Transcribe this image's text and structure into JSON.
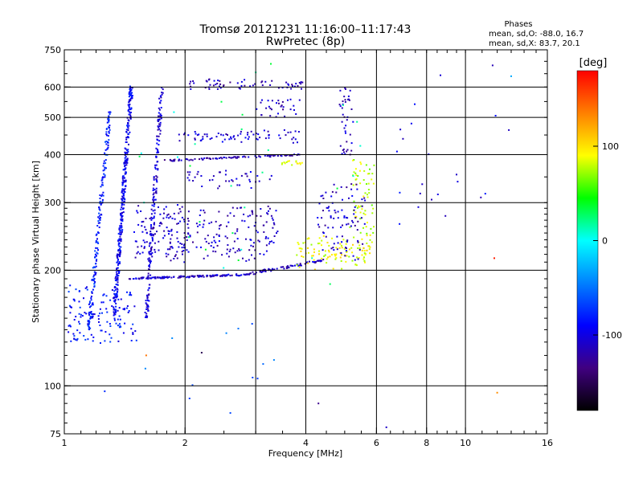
{
  "chart_data": {
    "type": "scatter",
    "title": "Tromsø 20121231 11:16:00–11:17:43",
    "subtitle": "RwPretec (8p)",
    "xlabel": "Frequency [MHz]",
    "ylabel": "Stationary phase Virtual Height [km]",
    "xscale": "log",
    "yscale": "log",
    "xlim": [
      1,
      16
    ],
    "ylim": [
      75,
      750
    ],
    "x_ticks": [
      1,
      2,
      4,
      6,
      8,
      10,
      16
    ],
    "x_gridlines": [
      2,
      3,
      4,
      6,
      8,
      10
    ],
    "y_ticks": [
      75,
      100,
      200,
      300,
      400,
      500,
      600,
      750
    ],
    "y_gridlines": [
      100,
      200,
      300,
      400,
      500,
      600
    ],
    "grid": true,
    "phase_box": {
      "heading": "Phases",
      "line_o": "mean, sd,O: -88.0, 16.7",
      "line_x": "mean, sd,X: 83.7, 20.1"
    },
    "colorbar": {
      "label": "[deg]",
      "range": [
        -180,
        180
      ],
      "ticks": [
        100,
        0,
        -100
      ],
      "colors": [
        "#ff0000",
        "#ff8000",
        "#ffff00",
        "#00ff00",
        "#00ffff",
        "#0080ff",
        "#0000ff",
        "#400080",
        "#000000"
      ]
    },
    "clusters": [
      {
        "desc": "F-layer trace O",
        "xs": [
          1.45,
          2.9
        ],
        "hs": [
          190,
          195
        ],
        "phase": -110,
        "n": 140,
        "jitter": 0.01
      },
      {
        "desc": "rising trace",
        "xs": [
          2.9,
          4.4
        ],
        "hs": [
          196,
          212
        ],
        "phase": -110,
        "n": 70,
        "jitter": 0.015
      },
      {
        "desc": "X trace near cusp",
        "xs": [
          3.8,
          5.8
        ],
        "hs": [
          205,
          240
        ],
        "phase": 90,
        "n": 110,
        "jitter": 0.05
      },
      {
        "desc": "cusp rise",
        "xs": [
          5.2,
          5.9
        ],
        "hs": [
          240,
          390
        ],
        "phase": 80,
        "n": 70,
        "jitter": 0.05
      },
      {
        "desc": "cusp O",
        "xs": [
          4.3,
          5.6
        ],
        "hs": [
          220,
          330
        ],
        "phase": -110,
        "n": 90,
        "jitter": 0.08
      },
      {
        "desc": "column 1.4",
        "xs": [
          1.33,
          1.47
        ],
        "hs": [
          150,
          600
        ],
        "phase": -95,
        "n": 330,
        "jitter": 0.01
      },
      {
        "desc": "column 1.25",
        "xs": [
          1.15,
          1.3
        ],
        "hs": [
          140,
          520
        ],
        "phase": -80,
        "n": 170,
        "jitter": 0.01
      },
      {
        "desc": "column 1.7",
        "xs": [
          1.6,
          1.75
        ],
        "hs": [
          150,
          600
        ],
        "phase": -105,
        "n": 190,
        "jitter": 0.01
      },
      {
        "desc": "low cluster",
        "xs": [
          1.02,
          1.5
        ],
        "hs": [
          130,
          180
        ],
        "phase": -85,
        "n": 130,
        "jitter": 0.04
      },
      {
        "desc": "band 260",
        "xs": [
          1.5,
          3.4
        ],
        "hs": [
          215,
          290
        ],
        "phase": -110,
        "n": 260,
        "jitter": 0.06
      },
      {
        "desc": "band 390",
        "xs": [
          1.7,
          3.9
        ],
        "hs": [
          385,
          400
        ],
        "phase": -115,
        "n": 90,
        "jitter": 0.01
      },
      {
        "desc": "band 440",
        "xs": [
          1.9,
          3.9
        ],
        "hs": [
          430,
          460
        ],
        "phase": -105,
        "n": 70,
        "jitter": 0.02
      },
      {
        "desc": "band 600",
        "xs": [
          2.0,
          3.9
        ],
        "hs": [
          595,
          625
        ],
        "phase": -115,
        "n": 60,
        "jitter": 0.02
      },
      {
        "desc": "upper 520",
        "xs": [
          3.0,
          3.9
        ],
        "hs": [
          500,
          560
        ],
        "phase": -115,
        "n": 30,
        "jitter": 0.02
      },
      {
        "desc": "mid 340",
        "xs": [
          2.0,
          3.3
        ],
        "hs": [
          330,
          360
        ],
        "phase": -110,
        "n": 40,
        "jitter": 0.03
      },
      {
        "desc": "column 5",
        "xs": [
          4.9,
          5.2
        ],
        "hs": [
          400,
          600
        ],
        "phase": -110,
        "n": 40,
        "jitter": 0.02
      },
      {
        "desc": "green-yellow 380",
        "xs": [
          3.5,
          3.9
        ],
        "hs": [
          375,
          385
        ],
        "phase": 95,
        "n": 15,
        "jitter": 0.02
      },
      {
        "desc": "scattered low",
        "xs": [
          1.2,
          6.0
        ],
        "hs": [
          90,
          130
        ],
        "phase": -60,
        "n": 14,
        "jitter": 0.3
      },
      {
        "desc": "scattered high",
        "xs": [
          6.0,
          13.0
        ],
        "hs": [
          220,
          650
        ],
        "phase": -100,
        "n": 20,
        "jitter": 0.3
      },
      {
        "desc": "misc colors",
        "xs": [
          1.5,
          5.5
        ],
        "hs": [
          200,
          600
        ],
        "phase": 20,
        "n": 30,
        "jitter": 0.4
      }
    ],
    "individual_points": [
      {
        "x": 6.35,
        "y": 78,
        "phase": -110
      },
      {
        "x": 4.3,
        "y": 90,
        "phase": -130
      },
      {
        "x": 12.0,
        "y": 96,
        "phase": 130
      },
      {
        "x": 11.8,
        "y": 215,
        "phase": 170
      },
      {
        "x": 13.0,
        "y": 640,
        "phase": -30
      },
      {
        "x": 9.5,
        "y": 355,
        "phase": -110
      },
      {
        "x": 7.8,
        "y": 335,
        "phase": -110
      },
      {
        "x": 1.6,
        "y": 120,
        "phase": 140
      },
      {
        "x": 2.2,
        "y": 122,
        "phase": -150
      }
    ]
  }
}
